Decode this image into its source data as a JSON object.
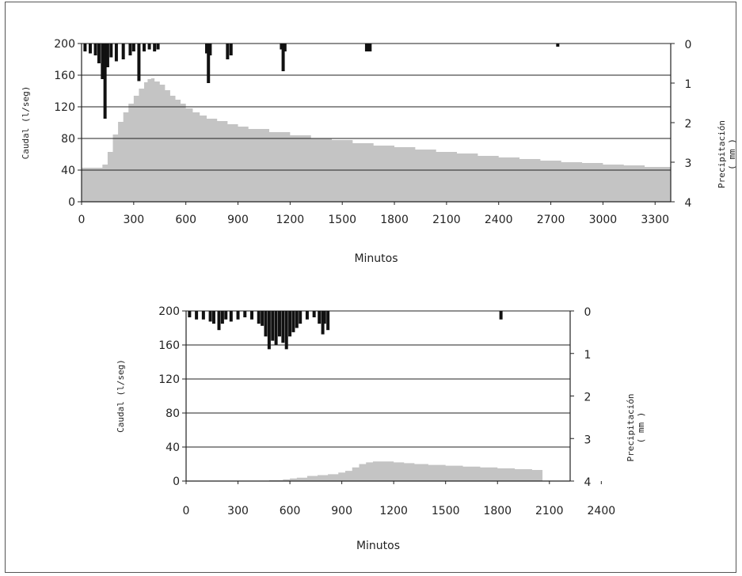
{
  "chart_data": [
    {
      "type": "area",
      "xlabel": "Minutos",
      "ylabel": "Caudal (l/seg)",
      "y2label": [
        "Precipitación",
        "( mm )"
      ],
      "x_ticks": [
        "0",
        "300",
        "600",
        "900",
        "1200",
        "1500",
        "1800",
        "2100",
        "2400",
        "2700",
        "3000",
        "3300"
      ],
      "y_ticks": [
        "0",
        "40",
        "80",
        "120",
        "160",
        "200"
      ],
      "y2_ticks": [
        "0",
        "1",
        "2",
        "3",
        "4"
      ],
      "xlim": [
        0,
        3390
      ],
      "ylim": [
        0,
        200
      ],
      "y2lim": [
        0,
        4
      ],
      "y2_inverted": true,
      "colors": {
        "flow": "#c4c4c4",
        "rain": "#111111"
      },
      "series": [
        {
          "x": [
            0,
            60,
            120,
            150,
            180,
            210,
            240,
            270,
            300,
            330,
            360,
            380,
            400,
            420,
            450,
            480,
            510,
            540,
            570,
            600,
            640,
            680,
            720,
            780,
            840,
            900,
            960,
            1080,
            1200,
            1320,
            1440,
            1560,
            1680,
            1800,
            1920,
            2040,
            2160,
            2280,
            2400,
            2520,
            2640,
            2760,
            2880,
            3000,
            3120,
            3240,
            3390
          ],
          "y": [
            43,
            43,
            47,
            63,
            85,
            101,
            113,
            124,
            134,
            143,
            151,
            155,
            156,
            152,
            148,
            141,
            134,
            129,
            124,
            118,
            113,
            109,
            105,
            102,
            98,
            95,
            92,
            88,
            84,
            80,
            78,
            74,
            71,
            69,
            66,
            63,
            61,
            58,
            56,
            54,
            52,
            50,
            49,
            47,
            46,
            44,
            42
          ]
        },
        {
          "x": [
            20,
            50,
            80,
            100,
            120,
            135,
            150,
            170,
            200,
            240,
            280,
            300,
            330,
            360,
            390,
            420,
            440,
            720,
            730,
            740,
            840,
            860,
            1150,
            1160,
            1170,
            1640,
            1650,
            1660,
            2740
          ],
          "y": [
            0.2,
            0.25,
            0.3,
            0.5,
            0.9,
            1.9,
            0.6,
            0.35,
            0.45,
            0.4,
            0.3,
            0.2,
            0.95,
            0.2,
            0.15,
            0.2,
            0.15,
            0.25,
            1.0,
            0.3,
            0.4,
            0.3,
            0.15,
            0.7,
            0.2,
            0.2,
            0.2,
            0.2,
            0.08
          ]
        }
      ]
    },
    {
      "type": "area",
      "xlabel": "Minutos",
      "ylabel": "Caudal (l/seg)",
      "y2label": [
        "Precipitación",
        "( mm )"
      ],
      "x_ticks": [
        "0",
        "300",
        "600",
        "900",
        "1200",
        "1500",
        "1800",
        "2100",
        "2400"
      ],
      "y_ticks": [
        "0",
        "40",
        "80",
        "120",
        "160",
        "200"
      ],
      "y2_ticks": [
        "0",
        "1",
        "2",
        "3",
        "4"
      ],
      "xlim": [
        0,
        2220
      ],
      "ylim": [
        0,
        200
      ],
      "y2lim": [
        0,
        4
      ],
      "y2_inverted": true,
      "colors": {
        "flow": "#c4c4c4",
        "rain": "#111111"
      },
      "series": [
        {
          "x": [
            0,
            300,
            480,
            520,
            560,
            600,
            640,
            700,
            760,
            820,
            880,
            920,
            960,
            1000,
            1040,
            1080,
            1140,
            1200,
            1260,
            1320,
            1400,
            1500,
            1600,
            1700,
            1800,
            1900,
            2000,
            2060
          ],
          "y": [
            0,
            0,
            1,
            1,
            2,
            3,
            4,
            6,
            7,
            8,
            10,
            12,
            16,
            20,
            22,
            23,
            23,
            22,
            21,
            20,
            19,
            18,
            17,
            16,
            15,
            14,
            13,
            12
          ]
        },
        {
          "x": [
            20,
            60,
            100,
            140,
            160,
            190,
            210,
            230,
            260,
            300,
            340,
            380,
            420,
            440,
            460,
            480,
            500,
            520,
            540,
            560,
            580,
            600,
            620,
            640,
            660,
            700,
            740,
            770,
            790,
            800,
            820,
            1820
          ],
          "y": [
            0.15,
            0.2,
            0.2,
            0.25,
            0.3,
            0.45,
            0.3,
            0.2,
            0.25,
            0.2,
            0.15,
            0.2,
            0.3,
            0.35,
            0.6,
            0.9,
            0.7,
            0.8,
            0.6,
            0.75,
            0.9,
            0.6,
            0.5,
            0.4,
            0.3,
            0.2,
            0.15,
            0.3,
            0.55,
            0.3,
            0.45,
            0.2
          ]
        }
      ]
    }
  ]
}
